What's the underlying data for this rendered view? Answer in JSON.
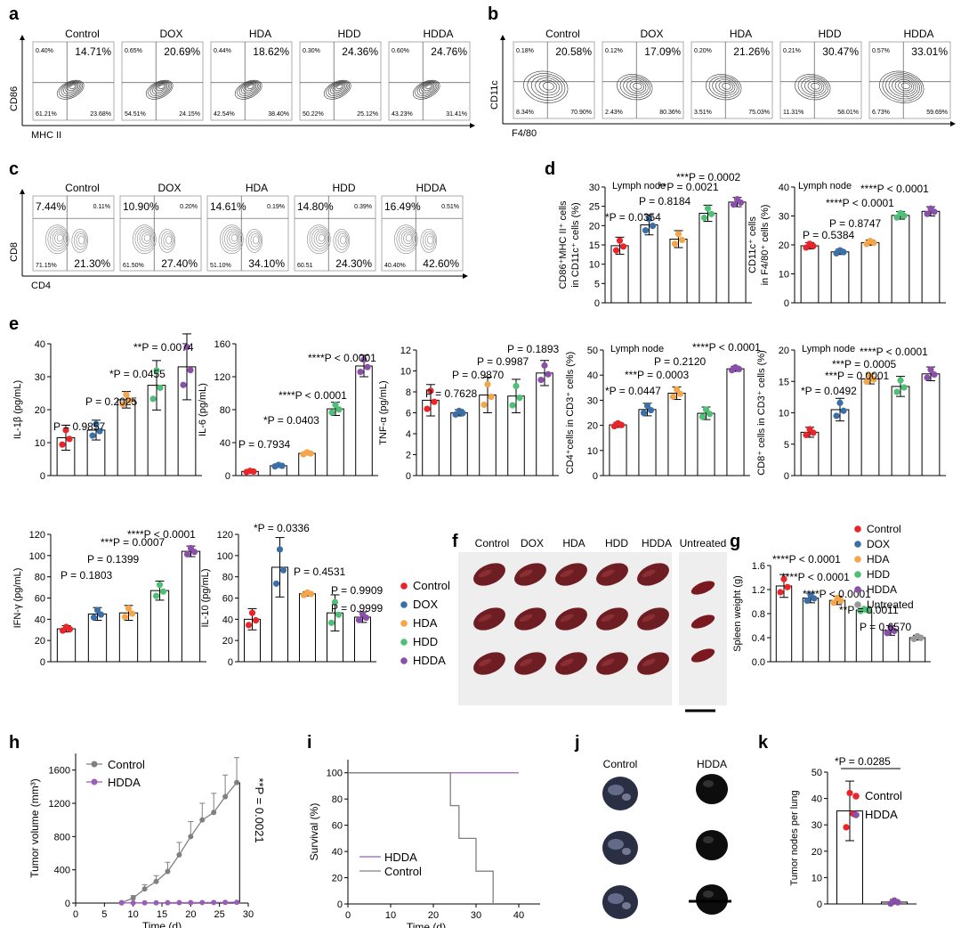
{
  "colors": {
    "Control": "#e8262a",
    "DOX": "#3a6fa8",
    "HDA": "#f5a54a",
    "HDD": "#4fbf77",
    "HDDA": "#8a4fa8",
    "Untreated": "#9a9a9a",
    "ctl_gray": "#808080",
    "hdda_purple": "#9a5db8",
    "red_text": "#e8262a"
  },
  "panels": {
    "a": "a",
    "b": "b",
    "c": "c",
    "d": "d",
    "e": "e",
    "f": "f",
    "g": "g",
    "h": "h",
    "i": "i",
    "j": "j",
    "k": "k"
  },
  "flow_a": {
    "xlabel": "MHC II",
    "ylabel": "CD86",
    "plots": [
      {
        "name": "Control",
        "big": "14.71%",
        "ul": "0.40%",
        "ll": "61.21%",
        "lr": "23.68%"
      },
      {
        "name": "DOX",
        "big": "20.69%",
        "ul": "0.65%",
        "ll": "54.51%",
        "lr": "24.15%"
      },
      {
        "name": "HDA",
        "big": "18.62%",
        "ul": "0.44%",
        "ll": "42.54%",
        "lr": "38.40%"
      },
      {
        "name": "HDD",
        "big": "24.36%",
        "ul": "0.30%",
        "ll": "50.22%",
        "lr": "25.12%"
      },
      {
        "name": "HDDA",
        "big": "24.76%",
        "ul": "0.60%",
        "ll": "43.23%",
        "lr": "31.41%"
      }
    ]
  },
  "flow_b": {
    "xlabel": "F4/80",
    "ylabel": "CD11c",
    "plots": [
      {
        "name": "Control",
        "big": "20.58%",
        "ul": "0.18%",
        "ll": "8.34%",
        "lr": "70.90%"
      },
      {
        "name": "DOX",
        "big": "17.09%",
        "ul": "0.12%",
        "ll": "2.43%",
        "lr": "80.36%"
      },
      {
        "name": "HDA",
        "big": "21.26%",
        "ul": "0.20%",
        "ll": "3.51%",
        "lr": "75.03%"
      },
      {
        "name": "HDD",
        "big": "30.47%",
        "ul": "0.21%",
        "ll": "11.31%",
        "lr": "58.01%"
      },
      {
        "name": "HDDA",
        "big": "33.01%",
        "ul": "0.57%",
        "ll": "6.73%",
        "lr": "59.69%"
      }
    ]
  },
  "flow_c": {
    "xlabel": "CD4",
    "ylabel": "CD8",
    "plots": [
      {
        "name": "Control",
        "ul": "7.44%",
        "ur": "0.11%",
        "ll": "71.15%",
        "lr": "21.30%"
      },
      {
        "name": "DOX",
        "ul": "10.90%",
        "ur": "0.20%",
        "ll": "61.50%",
        "lr": "27.40%"
      },
      {
        "name": "HDA",
        "ul": "14.61%",
        "ur": "0.19%",
        "ll": "51.10%",
        "lr": "34.10%"
      },
      {
        "name": "HDD",
        "ul": "14.80%",
        "ur": "0.39%",
        "ll": "60.51",
        "lr": "24.30%"
      },
      {
        "name": "HDDA",
        "ul": "16.49%",
        "ur": "0.51%",
        "ll": "40.40%",
        "lr": "42.60%"
      }
    ]
  },
  "chart_data": [
    {
      "id": "d1",
      "type": "bar",
      "tag": "Lymph node",
      "ylabel1": "CD86⁺MHC II⁺ cells",
      "ylabel2": "in CD11c⁺ cells (%)",
      "categories": [
        "Control",
        "DOX",
        "HDA",
        "HDD",
        "HDDA"
      ],
      "values": [
        14.8,
        20.2,
        16.5,
        23.2,
        26.1
      ],
      "errors": [
        2.2,
        2.6,
        2.2,
        2.1,
        1.2
      ],
      "ylim": [
        0,
        30
      ],
      "yticks": [
        "0",
        "5",
        "10",
        "15",
        "20",
        "25",
        "30"
      ],
      "stats": [
        "*P = 0.0354",
        "P = 0.8184",
        "**P = 0.0021",
        "***P = 0.0002"
      ]
    },
    {
      "id": "d2",
      "type": "bar",
      "tag": "Lymph node",
      "ylabel1": "CD11c⁺ cells",
      "ylabel2": "in F4/80⁺ cells (%)",
      "categories": [
        "Control",
        "DOX",
        "HDA",
        "HDD",
        "HDDA"
      ],
      "values": [
        19.7,
        17.6,
        20.8,
        30.2,
        31.6
      ],
      "errors": [
        1.1,
        0.9,
        0.9,
        1.3,
        1.6
      ],
      "ylim": [
        0,
        40
      ],
      "yticks": [
        "0",
        "10",
        "20",
        "30",
        "40"
      ],
      "stats": [
        "P = 0.5384",
        "P = 0.8747",
        "****P < 0.0001",
        "****P < 0.0001"
      ]
    },
    {
      "id": "e1",
      "type": "bar",
      "ylabel1": "IL-1β (pg/mL)",
      "categories": [
        "Control",
        "DOX",
        "HDA",
        "HDD",
        "HDDA"
      ],
      "values": [
        11.5,
        13.8,
        23.0,
        27.4,
        33.0
      ],
      "errors": [
        3.8,
        3.0,
        2.5,
        7.5,
        10.0
      ],
      "ylim": [
        0,
        40
      ],
      "yticks": [
        "0",
        "10",
        "20",
        "30",
        "40"
      ],
      "stats": [
        "P = 0.9857",
        "P = 0.2025",
        "*P = 0.0455",
        "**P = 0.0074"
      ]
    },
    {
      "id": "e2",
      "type": "bar",
      "ylabel1": "IL-6 (pg/mL)",
      "categories": [
        "Control",
        "DOX",
        "HDA",
        "HDD",
        "HDDA"
      ],
      "values": [
        5,
        12,
        27,
        81,
        133
      ],
      "errors": [
        1.2,
        1.5,
        2.0,
        8,
        13
      ],
      "ylim": [
        0,
        160
      ],
      "yticks": [
        "0",
        "40",
        "80",
        "120",
        "160"
      ],
      "stats": [
        "P = 0.7934",
        "*P = 0.0403",
        "****P < 0.0001",
        "****P < 0.0001"
      ]
    },
    {
      "id": "e3",
      "type": "bar",
      "ylabel1": "TNF-α (pg/mL)",
      "categories": [
        "Control",
        "DOX",
        "HDA",
        "HDD",
        "HDDA"
      ],
      "values": [
        7.2,
        6.0,
        7.7,
        7.6,
        9.8
      ],
      "errors": [
        1.5,
        0.3,
        1.7,
        1.6,
        1.2
      ],
      "ylim": [
        0,
        12
      ],
      "yticks": [
        "0",
        "2",
        "4",
        "6",
        "8",
        "10",
        "12"
      ],
      "stats": [
        "P = 0.7628",
        "P = 0.9870",
        "P = 0.9987",
        "P = 0.1893"
      ]
    },
    {
      "id": "e4",
      "type": "bar",
      "tag": "Lymph node",
      "ylabel1": "CD4⁺cells in CD3⁺ cells (%)",
      "categories": [
        "Control",
        "DOX",
        "HDA",
        "HDD",
        "HDDA"
      ],
      "values": [
        20.2,
        26.3,
        32.8,
        24.8,
        42.5
      ],
      "errors": [
        1.0,
        2.5,
        2.5,
        2.5,
        1.0
      ],
      "ylim": [
        0,
        50
      ],
      "yticks": [
        "0",
        "10",
        "20",
        "30",
        "40",
        "50"
      ],
      "stats": [
        "*P = 0.0447",
        "***P = 0.0003",
        "P = 0.2120",
        "****P < 0.0001"
      ]
    },
    {
      "id": "e5",
      "type": "bar",
      "tag": "Lymph node",
      "ylabel1": "CD8⁺ cells in CD3⁺ cells (%)",
      "categories": [
        "Control",
        "DOX",
        "HDA",
        "HDD",
        "HDDA"
      ],
      "values": [
        6.9,
        10.5,
        15.4,
        14.2,
        16.2
      ],
      "errors": [
        0.8,
        1.8,
        0.8,
        1.6,
        1.1
      ],
      "ylim": [
        0,
        20
      ],
      "yticks": [
        "0",
        "5",
        "10",
        "15",
        "20"
      ],
      "stats": [
        "*P = 0.0492",
        "***P = 0.0001",
        "***P = 0.0005",
        "****P < 0.0001"
      ]
    },
    {
      "id": "e6",
      "type": "bar",
      "ylabel1": "IFN-γ (pg/mL)",
      "categories": [
        "Control",
        "DOX",
        "HDA",
        "HDD",
        "HDDA"
      ],
      "values": [
        31,
        45,
        46,
        67,
        104
      ],
      "errors": [
        3,
        6,
        7,
        9,
        5
      ],
      "ylim": [
        0,
        120
      ],
      "yticks": [
        "0",
        "20",
        "40",
        "60",
        "80",
        "100",
        "120"
      ],
      "stats": [
        "P = 0.1803",
        "P = 0.1399",
        "***P = 0.0007",
        "****P < 0.0001"
      ]
    },
    {
      "id": "e7",
      "type": "bar",
      "ylabel1": "IL-10 (pg/mL)",
      "categories": [
        "Control",
        "DOX",
        "HDA",
        "HDD",
        "HDDA"
      ],
      "values": [
        40,
        89,
        64,
        46,
        42
      ],
      "errors": [
        10,
        28,
        2,
        17,
        5
      ],
      "ylim": [
        0,
        120
      ],
      "yticks": [
        "0",
        "20",
        "40",
        "60",
        "80",
        "100",
        "120"
      ],
      "stats": [
        "*P = 0.0336",
        "P = 0.4531",
        "P = 0.9909",
        "P = 0.9999"
      ]
    },
    {
      "id": "g",
      "type": "bar",
      "ylabel1": "Spleen weight (g)",
      "categories": [
        "Control",
        "DOX",
        "HDA",
        "HDD",
        "HDDA",
        "Untreated"
      ],
      "values": [
        1.26,
        1.06,
        1.02,
        0.86,
        0.52,
        0.4
      ],
      "errors": [
        0.19,
        0.08,
        0.07,
        0.03,
        0.08,
        0.04
      ],
      "ylim": [
        0,
        1.6
      ],
      "yticks": [
        "0.0",
        "0.4",
        "0.8",
        "1.2",
        "1.6"
      ],
      "stats": [
        "****P < 0.0001",
        "****P < 0.0001",
        "****P < 0.0001",
        "**P = 0.0011",
        "P = 0.6570"
      ]
    },
    {
      "id": "h",
      "type": "line",
      "xlabel": "Time (d)",
      "ylabel": "Tumor volume (mm³)",
      "xlim": [
        0,
        30
      ],
      "ylim": [
        0,
        1800
      ],
      "xticks": [
        "0",
        "5",
        "10",
        "15",
        "20",
        "25",
        "30"
      ],
      "yticks": [
        "0",
        "400",
        "800",
        "1200",
        "1600"
      ],
      "series": [
        {
          "name": "Control",
          "x": [
            8,
            10,
            12,
            14,
            16,
            18,
            20,
            22,
            24,
            26,
            28
          ],
          "y": [
            5,
            60,
            170,
            260,
            380,
            580,
            800,
            1000,
            1090,
            1280,
            1450
          ],
          "err": [
            10,
            30,
            50,
            70,
            110,
            150,
            180,
            200,
            230,
            260,
            300
          ]
        },
        {
          "name": "HDDA",
          "x": [
            8,
            10,
            12,
            14,
            16,
            18,
            20,
            22,
            24,
            26,
            28
          ],
          "y": [
            2,
            2,
            3,
            3,
            4,
            5,
            5,
            6,
            7,
            8,
            10
          ],
          "err": [
            0,
            0,
            0,
            0,
            0,
            0,
            0,
            0,
            0,
            0,
            0
          ]
        }
      ],
      "stat": "**P = 0.0021"
    },
    {
      "id": "i",
      "type": "line",
      "xlabel": "Time (d)",
      "ylabel": "Survival (%)",
      "xlim": [
        0,
        45
      ],
      "ylim": [
        0,
        110
      ],
      "xticks": [
        "0",
        "10",
        "20",
        "30",
        "40"
      ],
      "yticks": [
        "0",
        "20",
        "40",
        "60",
        "80",
        "100"
      ],
      "series": [
        {
          "name": "HDDA",
          "x": [
            0,
            40
          ],
          "y": [
            100,
            100
          ]
        },
        {
          "name": "Control",
          "x": [
            0,
            24,
            24,
            26,
            26,
            30,
            30,
            34,
            34
          ],
          "y": [
            100,
            100,
            75,
            75,
            50,
            50,
            25,
            25,
            0
          ]
        }
      ]
    },
    {
      "id": "k",
      "type": "bar",
      "ylabel1": "Tumor nodes per lung",
      "categories": [
        "Control",
        "HDDA"
      ],
      "values": [
        35.3,
        0.7
      ],
      "errors": [
        11.3,
        1.0
      ],
      "ylim": [
        0,
        50
      ],
      "yticks": [
        "0",
        "10",
        "20",
        "30",
        "40",
        "50"
      ],
      "stats": [
        "*P = 0.0285"
      ]
    }
  ],
  "legend_e": [
    "Control",
    "DOX",
    "HDA",
    "HDD",
    "HDDA"
  ],
  "legend_g": [
    "Control",
    "DOX",
    "HDA",
    "HDD",
    "HDDA",
    "Untreated"
  ],
  "legend_h": [
    "Control",
    "HDDA"
  ],
  "legend_i": [
    "HDDA",
    "Control"
  ],
  "legend_k": [
    "Control",
    "HDDA"
  ],
  "photo_f": {
    "labels": [
      "Control",
      "DOX",
      "HDA",
      "HDD",
      "HDDA",
      "Untreated"
    ]
  },
  "photo_j": {
    "labels": [
      "Control",
      "HDDA"
    ]
  }
}
